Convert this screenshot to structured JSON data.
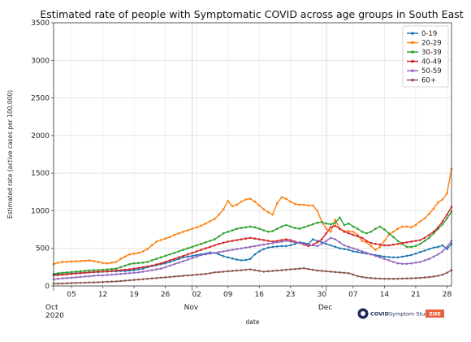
{
  "chart_data": {
    "type": "line",
    "title": "Estimated rate of people with Symptomatic COVID across age groups in South East",
    "xlabel": "date",
    "ylabel": "Estimated rate (active cases per 100,000)",
    "ylim": [
      0,
      3500
    ],
    "yticks": [
      0,
      500,
      1000,
      1500,
      2000,
      2500,
      3000,
      3500
    ],
    "x_start": "2020-10-01",
    "x_end": "2020-12-29",
    "xtick_days": [
      "05",
      "12",
      "19",
      "26",
      "02",
      "09",
      "16",
      "23",
      "30",
      "07",
      "14",
      "21",
      "28"
    ],
    "xtick_dates": [
      "2020-10-05",
      "2020-10-12",
      "2020-10-19",
      "2020-10-26",
      "2020-11-02",
      "2020-11-09",
      "2020-11-16",
      "2020-11-23",
      "2020-11-30",
      "2020-12-07",
      "2020-12-14",
      "2020-12-21",
      "2020-12-28"
    ],
    "month_labels": [
      {
        "date": "2020-10-01",
        "label": "Oct",
        "sub": "2020"
      },
      {
        "date": "2020-11-01",
        "label": "Nov",
        "sub": ""
      },
      {
        "date": "2020-12-01",
        "label": "Dec",
        "sub": ""
      }
    ],
    "grid": true,
    "legend_position": "top-right",
    "series": [
      {
        "name": "0-19",
        "color": "#1f77b4",
        "values": [
          150,
          155,
          155,
          160,
          165,
          170,
          175,
          175,
          180,
          185,
          185,
          190,
          190,
          195,
          195,
          200,
          200,
          205,
          210,
          220,
          230,
          250,
          265,
          275,
          290,
          300,
          320,
          340,
          360,
          380,
          390,
          400,
          410,
          420,
          430,
          445,
          440,
          420,
          395,
          380,
          365,
          350,
          340,
          345,
          360,
          420,
          460,
          490,
          510,
          520,
          525,
          530,
          530,
          540,
          560,
          580,
          570,
          560,
          620,
          600,
          580,
          560,
          540,
          520,
          500,
          490,
          480,
          460,
          450,
          440,
          430,
          420,
          410,
          400,
          390,
          385,
          380,
          380,
          390,
          400,
          410,
          430,
          450,
          470,
          490,
          510,
          520,
          540,
          490,
          560
        ]
      },
      {
        "name": "20-29",
        "color": "#ff7f0e",
        "values": [
          290,
          310,
          320,
          320,
          325,
          330,
          330,
          335,
          340,
          330,
          320,
          305,
          300,
          310,
          320,
          360,
          390,
          420,
          430,
          440,
          460,
          490,
          540,
          590,
          610,
          630,
          650,
          680,
          700,
          720,
          740,
          760,
          780,
          800,
          830,
          860,
          890,
          950,
          1020,
          1130,
          1060,
          1080,
          1120,
          1150,
          1160,
          1120,
          1070,
          1020,
          980,
          950,
          1100,
          1180,
          1160,
          1120,
          1090,
          1080,
          1080,
          1070,
          1070,
          1000,
          850,
          760,
          720,
          880,
          760,
          730,
          730,
          720,
          680,
          600,
          580,
          530,
          480,
          520,
          600,
          680,
          720,
          760,
          790,
          790,
          780,
          810,
          860,
          900,
          960,
          1030,
          1110,
          1150,
          1230,
          1560
        ]
      },
      {
        "name": "30-39",
        "color": "#2ca02c",
        "values": [
          160,
          170,
          175,
          180,
          185,
          190,
          195,
          200,
          205,
          210,
          210,
          215,
          220,
          225,
          230,
          250,
          270,
          290,
          300,
          305,
          310,
          320,
          340,
          360,
          380,
          400,
          420,
          440,
          460,
          480,
          500,
          520,
          540,
          560,
          580,
          600,
          620,
          660,
          700,
          720,
          740,
          760,
          770,
          780,
          790,
          780,
          760,
          740,
          720,
          730,
          760,
          790,
          810,
          790,
          770,
          760,
          780,
          800,
          820,
          840,
          850,
          830,
          820,
          840,
          910,
          810,
          830,
          790,
          760,
          720,
          700,
          720,
          760,
          790,
          750,
          700,
          650,
          600,
          560,
          520,
          520,
          530,
          560,
          600,
          640,
          700,
          760,
          820,
          900,
          990
        ]
      },
      {
        "name": "40-49",
        "color": "#d62728",
        "values": [
          140,
          145,
          150,
          155,
          160,
          165,
          170,
          175,
          180,
          185,
          190,
          190,
          195,
          200,
          205,
          210,
          215,
          220,
          230,
          240,
          250,
          260,
          270,
          285,
          300,
          320,
          340,
          360,
          380,
          400,
          420,
          440,
          460,
          480,
          500,
          520,
          540,
          560,
          575,
          590,
          600,
          610,
          620,
          630,
          640,
          630,
          620,
          610,
          600,
          590,
          600,
          610,
          620,
          610,
          590,
          570,
          550,
          530,
          550,
          580,
          620,
          700,
          780,
          800,
          760,
          720,
          700,
          680,
          660,
          640,
          600,
          570,
          560,
          550,
          540,
          540,
          550,
          560,
          570,
          580,
          590,
          600,
          610,
          640,
          680,
          720,
          780,
          860,
          950,
          1050
        ]
      },
      {
        "name": "50-59",
        "color": "#9467bd",
        "values": [
          90,
          95,
          100,
          105,
          110,
          115,
          120,
          125,
          130,
          135,
          140,
          140,
          145,
          150,
          155,
          160,
          165,
          170,
          175,
          180,
          190,
          200,
          210,
          220,
          230,
          250,
          270,
          290,
          310,
          330,
          350,
          370,
          390,
          410,
          420,
          430,
          440,
          450,
          460,
          470,
          480,
          490,
          500,
          510,
          520,
          530,
          540,
          550,
          560,
          570,
          580,
          590,
          600,
          590,
          580,
          570,
          560,
          550,
          540,
          530,
          560,
          600,
          640,
          620,
          580,
          540,
          520,
          500,
          480,
          460,
          440,
          420,
          400,
          380,
          360,
          340,
          320,
          300,
          295,
          295,
          300,
          310,
          320,
          340,
          360,
          390,
          420,
          460,
          520,
          600
        ]
      },
      {
        "name": "60+",
        "color": "#8c564b",
        "values": [
          30,
          32,
          34,
          36,
          38,
          40,
          42,
          44,
          46,
          48,
          50,
          52,
          55,
          58,
          60,
          65,
          70,
          75,
          80,
          85,
          90,
          95,
          100,
          105,
          110,
          115,
          120,
          125,
          130,
          135,
          140,
          145,
          150,
          155,
          160,
          170,
          180,
          185,
          190,
          195,
          200,
          205,
          210,
          215,
          220,
          210,
          200,
          190,
          195,
          200,
          205,
          210,
          215,
          220,
          225,
          230,
          235,
          225,
          215,
          205,
          200,
          195,
          190,
          185,
          180,
          175,
          170,
          150,
          130,
          120,
          110,
          105,
          100,
          98,
          96,
          95,
          95,
          96,
          98,
          100,
          102,
          105,
          108,
          112,
          118,
          125,
          135,
          150,
          175,
          210
        ]
      }
    ]
  },
  "logo": {
    "brand": "COVID",
    "suffix": "Symptom Study",
    "zoe": "ZOE"
  }
}
